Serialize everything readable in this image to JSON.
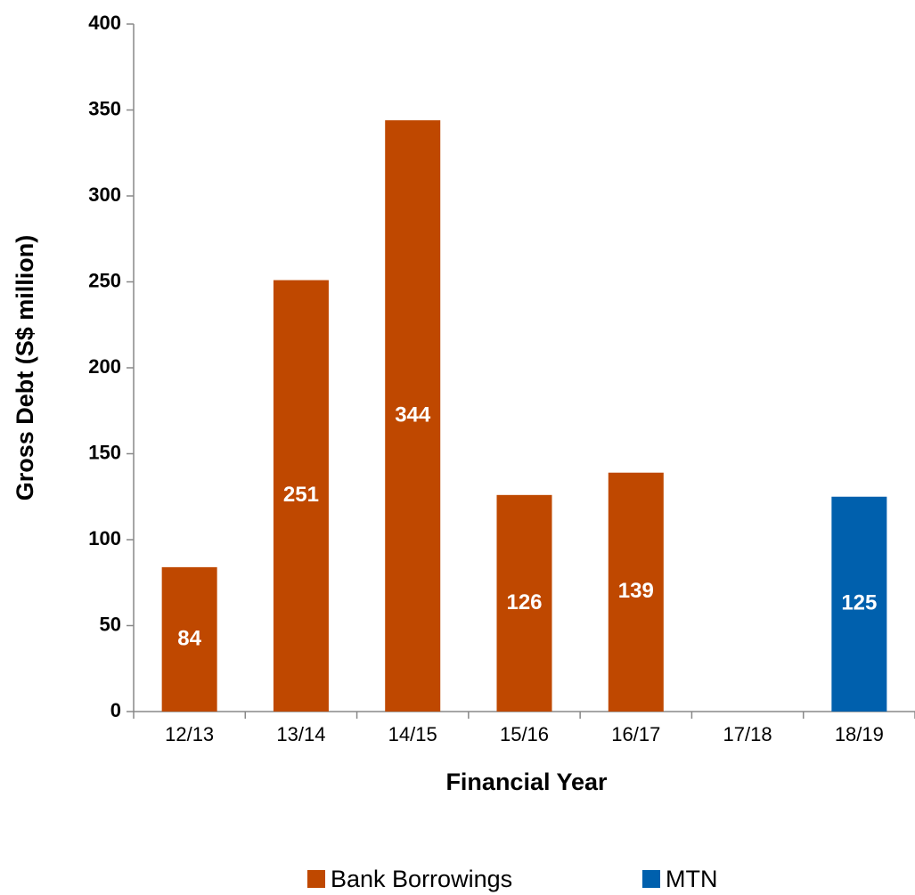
{
  "chart_data": {
    "type": "bar",
    "stacked": true,
    "x_label": "Financial Year",
    "y_label": "Gross Debt (S$ million)",
    "categories": [
      "12/13",
      "13/14",
      "14/15",
      "15/16",
      "16/17",
      "17/18",
      "18/19"
    ],
    "series": [
      {
        "name": "Bank Borrowings",
        "color": "#bf4800",
        "values": [
          84,
          251,
          344,
          126,
          139,
          null,
          null
        ]
      },
      {
        "name": "MTN",
        "color": "#0060ad",
        "values": [
          null,
          null,
          null,
          null,
          null,
          null,
          125
        ]
      }
    ],
    "ylim": [
      0,
      400
    ],
    "yticks": [
      0,
      50,
      100,
      150,
      200,
      250,
      300,
      350,
      400
    ],
    "legend": "bottom",
    "grid": false
  }
}
